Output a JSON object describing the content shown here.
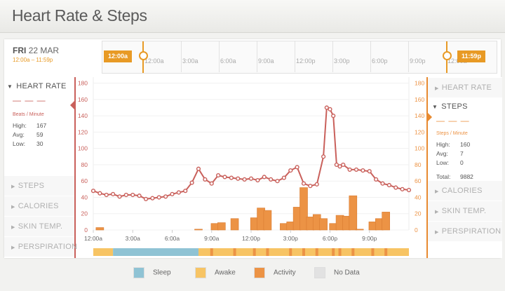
{
  "header": {
    "title": "Heart Rate & Steps"
  },
  "date": {
    "dow": "FRI",
    "date": "22 MAR",
    "range": "12:00a – 11:59p"
  },
  "timeline": {
    "start_tag": "12:00a",
    "end_tag": "11:59p",
    "labels": [
      "12:00a",
      "3:00a",
      "6:00a",
      "9:00a",
      "12:00p",
      "3:00p",
      "6:00p",
      "9:00p",
      "12:00a"
    ]
  },
  "left_metrics": {
    "active": {
      "name": "HEART RATE",
      "dashes": "— — —",
      "unit": "Beats / Minute",
      "stats": [
        {
          "k": "High:",
          "v": "167"
        },
        {
          "k": "Avg:",
          "v": "59"
        },
        {
          "k": "Low:",
          "v": "30"
        }
      ]
    },
    "others": [
      "STEPS",
      "CALORIES",
      "SKIN TEMP.",
      "PERSPIRATION"
    ]
  },
  "right_metrics": {
    "top": "HEART RATE",
    "active": {
      "name": "STEPS",
      "dashes": "— — —",
      "unit": "Steps / Minute",
      "stats": [
        {
          "k": "High:",
          "v": "160"
        },
        {
          "k": "Avg:",
          "v": "7"
        },
        {
          "k": "Low:",
          "v": "0"
        }
      ],
      "total_label": "Total:",
      "total_value": "9882"
    },
    "others": [
      "CALORIES",
      "SKIN TEMP.",
      "PERSPIRATION"
    ]
  },
  "legend": [
    {
      "label": "Sleep",
      "color": "#8fc3d4"
    },
    {
      "label": "Awake",
      "color": "#f7c464"
    },
    {
      "label": "Activity",
      "color": "#ec9345"
    },
    {
      "label": "No Data",
      "color": "#e2e2e2"
    }
  ],
  "colors": {
    "heart": "#c9605b",
    "steps": "#ec9345",
    "accent": "#e89a25"
  },
  "chart_data": {
    "type": "line",
    "xlabel": "",
    "ylabel": "",
    "x_ticks": [
      "12:00a",
      "3:00a",
      "6:00a",
      "9:00a",
      "12:00p",
      "3:00p",
      "6:00p",
      "9:00p"
    ],
    "x_tick_hours": [
      0,
      3,
      6,
      9,
      12,
      15,
      18,
      21
    ],
    "xlim_hours": [
      0,
      24
    ],
    "y_ticks": [
      0,
      20,
      40,
      60,
      80,
      100,
      120,
      140,
      160,
      180
    ],
    "ylim": [
      0,
      190
    ],
    "series": [
      {
        "name": "HEART RATE",
        "type": "line",
        "color": "#c9605b",
        "x": [
          0,
          0.5,
          1,
          1.5,
          2,
          2.5,
          3,
          3.5,
          4,
          4.5,
          5,
          5.5,
          6,
          6.5,
          7,
          7.5,
          8,
          8.5,
          9,
          9.5,
          10,
          10.5,
          11,
          11.5,
          12,
          12.5,
          13,
          13.5,
          14,
          14.5,
          15,
          15.5,
          16,
          16.5,
          17,
          17.5,
          17.75,
          18,
          18.25,
          18.5,
          18.75,
          19,
          19.5,
          20,
          20.5,
          21,
          21.5,
          22,
          22.5,
          23,
          23.5,
          24
        ],
        "y": [
          48,
          45,
          43,
          44,
          41,
          43,
          43,
          42,
          38,
          39,
          40,
          41,
          44,
          46,
          48,
          58,
          75,
          62,
          57,
          67,
          65,
          64,
          63,
          62,
          63,
          61,
          65,
          62,
          60,
          64,
          73,
          77,
          57,
          54,
          56,
          90,
          150,
          148,
          140,
          80,
          78,
          80,
          74,
          74,
          73,
          72,
          62,
          57,
          55,
          52,
          50,
          49
        ]
      },
      {
        "name": "STEPS",
        "type": "bar",
        "color": "#ec9345",
        "x": [
          0.5,
          8,
          9.25,
          9.75,
          10.75,
          12.25,
          12.75,
          13.25,
          14.5,
          15,
          15.5,
          16,
          16.5,
          17,
          17.5,
          18.25,
          18.75,
          19.25,
          19.75,
          20.25,
          21.25,
          21.75,
          22.25
        ],
        "y": [
          3,
          1,
          8,
          9,
          14,
          15,
          27,
          24,
          8,
          10,
          28,
          52,
          16,
          19,
          14,
          8,
          18,
          17,
          42,
          1,
          10,
          14,
          22
        ]
      }
    ],
    "day_segments": [
      {
        "from": 0,
        "to": 1.5,
        "state": "Awake"
      },
      {
        "from": 1.5,
        "to": 8,
        "state": "Sleep"
      },
      {
        "from": 8,
        "to": 24,
        "state": "Awake"
      }
    ],
    "activity_marks_hours": [
      9,
      10.75,
      12.25,
      13.25,
      15,
      16,
      17,
      18.25,
      18.75,
      19.75,
      21.25,
      22.25
    ]
  }
}
